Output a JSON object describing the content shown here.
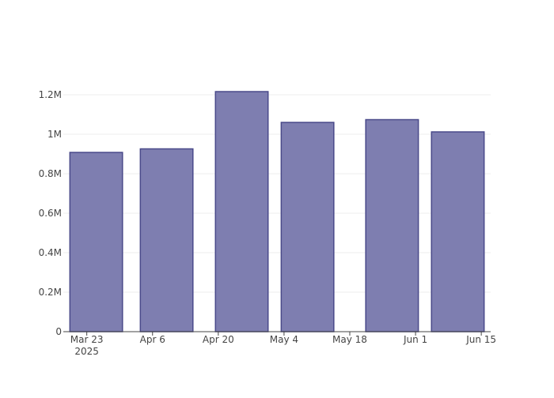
{
  "chart_data": {
    "type": "bar",
    "x": [
      "2025-03-25",
      "2025-04-09",
      "2025-04-25",
      "2025-05-09",
      "2025-05-27",
      "2025-06-10"
    ],
    "values": [
      908000,
      926000,
      1216000,
      1060000,
      1074000,
      1012000
    ],
    "color": "#7e7eb0",
    "line_color": "#4a4a8a",
    "xlim": [
      "2025-03-18",
      "2025-06-17"
    ],
    "xticks": [
      {
        "value": "2025-03-23",
        "label": [
          "Mar 23",
          "2025"
        ]
      },
      {
        "value": "2025-04-06",
        "label": "Apr 6"
      },
      {
        "value": "2025-04-20",
        "label": "Apr 20"
      },
      {
        "value": "2025-05-04",
        "label": "May 4"
      },
      {
        "value": "2025-05-18",
        "label": "May 18"
      },
      {
        "value": "2025-06-01",
        "label": "Jun 1"
      },
      {
        "value": "2025-06-15",
        "label": "Jun 15"
      }
    ],
    "ylim": [
      0,
      1280000
    ],
    "yticks": [
      0,
      {
        "value": 200000,
        "label": "0.2M"
      },
      {
        "value": 400000,
        "label": "0.4M"
      },
      {
        "value": 600000,
        "label": "0.6M"
      },
      {
        "value": 800000,
        "label": "0.8M"
      },
      {
        "value": 1000000,
        "label": "1M"
      },
      {
        "value": 1200000,
        "label": "1.2M"
      }
    ],
    "grid": true
  }
}
